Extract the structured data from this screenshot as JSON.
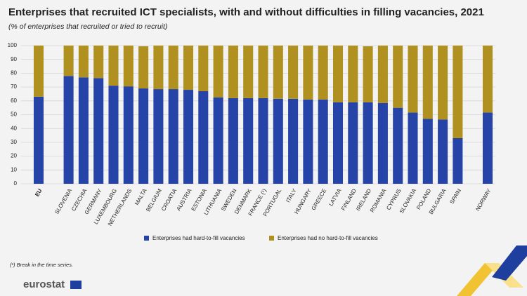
{
  "chart_data": {
    "type": "stacked-bar",
    "title": "Enterprises that recruited ICT specialists, with and without difficulties in filling vacancies, 2021",
    "subtitle": "(% of enterprises that recruited or tried to recruit)",
    "categories": [
      "EU",
      null,
      "SLOVENIA",
      "CZECHIA",
      "GERMANY",
      "LUXEMBOURG",
      "NETHERLANDS",
      "MALTA",
      "BELGIUM",
      "CROATIA",
      "AUSTRIA",
      "ESTONIA",
      "LITHUANIA",
      "SWEDEN",
      "DENMARK",
      "FRANCE (¹)",
      "PORTUGAL",
      "ITALY",
      "HUNGARY",
      "GREECE",
      "LATVIA",
      "FINLAND",
      "IRELAND",
      "ROMANIA",
      "CYPRUS",
      "SLOVAKIA",
      "POLAND",
      "BULGARIA",
      "SPAIN",
      null,
      "NORWAY"
    ],
    "series": [
      {
        "name": "Enterprises had hard-to-fill vacancies",
        "color": "#2644a7",
        "values": [
          63,
          null,
          78,
          77,
          76.5,
          71,
          70.5,
          69,
          68.5,
          68.5,
          68,
          67,
          62.5,
          62,
          62,
          62,
          61.5,
          61.5,
          61,
          61,
          59,
          59,
          59,
          58.5,
          55,
          51.5,
          47,
          46.5,
          33,
          null,
          51.5
        ]
      },
      {
        "name": "Enterprises had no hard-to-fill vacancies",
        "color": "#b09120",
        "values": [
          37,
          null,
          22,
          23,
          23.5,
          29,
          29.5,
          30.5,
          31.5,
          31.5,
          32,
          33,
          37.5,
          38,
          38,
          38,
          38.5,
          38.5,
          39,
          39,
          41,
          41,
          40.5,
          41.5,
          45,
          48.5,
          53,
          53.5,
          67,
          null,
          48.5
        ]
      }
    ],
    "ylim": [
      0,
      100
    ],
    "yticks": [
      0,
      10,
      20,
      30,
      40,
      50,
      60,
      70,
      80,
      90,
      100
    ],
    "grid": true,
    "footnote": "(¹) Break in the time series.",
    "logo": "eurostat"
  }
}
